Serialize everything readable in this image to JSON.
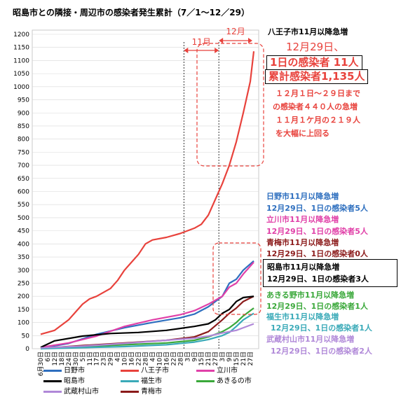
{
  "chart_data": {
    "type": "line",
    "title": "昭島市との隣接・周辺市の感染者発生累計（7／1～12／29）",
    "ylim": [
      0,
      1200
    ],
    "ytick_step": 50,
    "grid": "horizontal",
    "x_labels": [
      "6月30日",
      "6日",
      "12日",
      "18日",
      "24日",
      "30日",
      "5日",
      "11日",
      "17日",
      "23日",
      "29日",
      "4日",
      "10日",
      "16日",
      "22日",
      "28日",
      "4日",
      "10日",
      "16日",
      "22日",
      "28日",
      "3日",
      "9日",
      "15日",
      "21日",
      "27日",
      "3日",
      "9日",
      "15日",
      "21日",
      "27日"
    ],
    "series": [
      {
        "name": "八王子市",
        "color": "#e8423c",
        "points": [
          [
            0,
            55
          ],
          [
            2,
            70
          ],
          [
            4,
            110
          ],
          [
            5,
            140
          ],
          [
            6,
            170
          ],
          [
            7,
            190
          ],
          [
            8,
            200
          ],
          [
            9,
            215
          ],
          [
            10,
            230
          ],
          [
            11,
            260
          ],
          [
            12,
            300
          ],
          [
            13,
            330
          ],
          [
            14,
            360
          ],
          [
            15,
            400
          ],
          [
            16,
            415
          ],
          [
            18,
            425
          ],
          [
            20,
            440
          ],
          [
            22,
            460
          ],
          [
            23,
            475
          ],
          [
            24,
            510
          ],
          [
            25,
            570
          ],
          [
            26,
            630
          ],
          [
            27,
            700
          ],
          [
            28,
            790
          ],
          [
            29,
            900
          ],
          [
            30,
            1020
          ],
          [
            30.5,
            1135
          ]
        ]
      },
      {
        "name": "日野市",
        "color": "#2e6fbf",
        "points": [
          [
            0,
            2
          ],
          [
            4,
            20
          ],
          [
            8,
            55
          ],
          [
            12,
            80
          ],
          [
            16,
            100
          ],
          [
            20,
            118
          ],
          [
            22,
            132
          ],
          [
            24,
            160
          ],
          [
            26,
            200
          ],
          [
            27,
            250
          ],
          [
            28,
            265
          ],
          [
            29,
            300
          ],
          [
            30.5,
            335
          ]
        ]
      },
      {
        "name": "立川市",
        "color": "#e040a8",
        "points": [
          [
            0,
            5
          ],
          [
            4,
            22
          ],
          [
            8,
            48
          ],
          [
            12,
            85
          ],
          [
            16,
            110
          ],
          [
            20,
            130
          ],
          [
            22,
            145
          ],
          [
            24,
            170
          ],
          [
            26,
            200
          ],
          [
            27,
            235
          ],
          [
            28,
            250
          ],
          [
            29,
            285
          ],
          [
            30.5,
            330
          ]
        ]
      },
      {
        "name": "青梅市",
        "color": "#8b1a1a",
        "points": [
          [
            0,
            1
          ],
          [
            6,
            12
          ],
          [
            12,
            22
          ],
          [
            18,
            32
          ],
          [
            22,
            45
          ],
          [
            24,
            65
          ],
          [
            26,
            110
          ],
          [
            27,
            135
          ],
          [
            28,
            155
          ],
          [
            29,
            180
          ],
          [
            30.5,
            200
          ]
        ]
      },
      {
        "name": "昭島市",
        "color": "#000000",
        "points": [
          [
            0,
            5
          ],
          [
            2,
            30
          ],
          [
            6,
            48
          ],
          [
            10,
            58
          ],
          [
            14,
            62
          ],
          [
            18,
            70
          ],
          [
            22,
            85
          ],
          [
            24,
            95
          ],
          [
            25,
            110
          ],
          [
            26,
            135
          ],
          [
            27,
            150
          ],
          [
            28,
            180
          ],
          [
            29,
            195
          ],
          [
            30.5,
            200
          ]
        ]
      },
      {
        "name": "あきるの市",
        "color": "#3aa83a",
        "points": [
          [
            0,
            0
          ],
          [
            6,
            8
          ],
          [
            12,
            15
          ],
          [
            18,
            22
          ],
          [
            22,
            32
          ],
          [
            24,
            45
          ],
          [
            26,
            65
          ],
          [
            27,
            80
          ],
          [
            28,
            100
          ],
          [
            29,
            125
          ],
          [
            30.5,
            155
          ]
        ]
      },
      {
        "name": "福生市",
        "color": "#3aaab8",
        "points": [
          [
            0,
            0
          ],
          [
            6,
            4
          ],
          [
            12,
            8
          ],
          [
            18,
            15
          ],
          [
            22,
            25
          ],
          [
            24,
            35
          ],
          [
            26,
            50
          ],
          [
            27,
            62
          ],
          [
            28,
            85
          ],
          [
            29,
            110
          ],
          [
            30.5,
            135
          ]
        ]
      },
      {
        "name": "武蔵村山市",
        "color": "#b088d8",
        "points": [
          [
            0,
            3
          ],
          [
            6,
            10
          ],
          [
            12,
            20
          ],
          [
            18,
            32
          ],
          [
            22,
            40
          ],
          [
            24,
            48
          ],
          [
            26,
            60
          ],
          [
            28,
            70
          ],
          [
            29,
            80
          ],
          [
            30.5,
            95
          ]
        ]
      }
    ],
    "legend": [
      {
        "label": "日野市",
        "color": "#2e6fbf"
      },
      {
        "label": "八王子市",
        "color": "#e8423c"
      },
      {
        "label": "立川市",
        "color": "#e040a8"
      },
      {
        "label": "昭島市",
        "color": "#000000"
      },
      {
        "label": "福生市",
        "color": "#3aaab8"
      },
      {
        "label": "あきるの市",
        "color": "#3aa83a"
      },
      {
        "label": "武蔵村山市",
        "color": "#b088d8"
      },
      {
        "label": "青梅市",
        "color": "#8b1a1a"
      }
    ],
    "period_labels": {
      "nov": "11月",
      "dec": "12月"
    }
  },
  "annotations": {
    "hachioji": {
      "title": "八王子市11月以降急増",
      "date": "12月29日、",
      "daily": "1日の感染者 11人",
      "total": "累計感染者1,135人",
      "note1": "１２月１日～２９日まで",
      "note2": "の感染者４４０人の急増",
      "note3": "１１月１ケ月の２１９人",
      "note4": "を大幅に上回る"
    },
    "hino": {
      "line1": "日野市11月以降急増",
      "line2": "12月29日、1日の感染者5人"
    },
    "tachikawa": {
      "line1": "立川市11月以降急増",
      "line2": "12月29日、1日の感染者5人"
    },
    "ome": {
      "line1": "青梅市11月以降急増",
      "line2": "12月29日、1日の感染者0人"
    },
    "akishima": {
      "line1": "昭島市11月以降急増",
      "line2": "12月29日、1日の感染者3人"
    },
    "akiruno": {
      "line1": "あきる野市11月以降急増",
      "line2": "12月29日、1日の感染者1人"
    },
    "fussa": {
      "line1": "福生市11月以降急増",
      "line2": "12月29日、1日の感染者1人"
    },
    "musashimurayama": {
      "line1": "武蔵村山市11月以降急増",
      "line2": "12月29日、1日の感染者2人"
    }
  },
  "colors": {
    "red": "#e8423c",
    "blue": "#2e6fbf",
    "pink": "#e040a8",
    "darkred": "#8b1a1a",
    "green": "#3aa83a",
    "teal": "#3aaab8",
    "purple": "#b088d8"
  }
}
